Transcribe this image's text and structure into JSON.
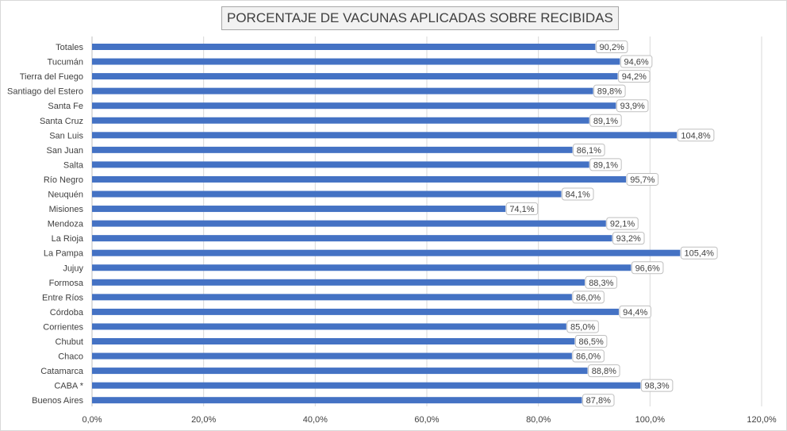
{
  "chart_data": {
    "type": "bar",
    "orientation": "horizontal",
    "title": "PORCENTAJE DE VACUNAS APLICADAS SOBRE RECIBIDAS",
    "xlabel": "",
    "ylabel": "",
    "xlim": [
      0,
      120
    ],
    "xticks": [
      0,
      20,
      40,
      60,
      80,
      100,
      120
    ],
    "xtick_labels": [
      "0,0%",
      "20,0%",
      "40,0%",
      "60,0%",
      "80,0%",
      "100,0%",
      "120,0%"
    ],
    "grid": true,
    "legend": "none",
    "bar_color": "#4472c4",
    "categories": [
      "Totales",
      "Tucumán",
      "Tierra del Fuego",
      "Santiago del Estero",
      "Santa Fe",
      "Santa Cruz",
      "San Luis",
      "San Juan",
      "Salta",
      "Río Negro",
      "Neuquén",
      "Misiones",
      "Mendoza",
      "La Rioja",
      "La Pampa",
      "Jujuy",
      "Formosa",
      "Entre Ríos",
      "Córdoba",
      "Corrientes",
      "Chubut",
      "Chaco",
      "Catamarca",
      "CABA *",
      "Buenos Aires"
    ],
    "values": [
      90.2,
      94.6,
      94.2,
      89.8,
      93.9,
      89.1,
      104.8,
      86.1,
      89.1,
      95.7,
      84.1,
      74.1,
      92.1,
      93.2,
      105.4,
      96.6,
      88.3,
      86.0,
      94.4,
      85.0,
      86.5,
      86.0,
      88.8,
      98.3,
      87.8
    ],
    "value_labels": [
      "90,2%",
      "94,6%",
      "94,2%",
      "89,8%",
      "93,9%",
      "89,1%",
      "104,8%",
      "86,1%",
      "89,1%",
      "95,7%",
      "84,1%",
      "74,1%",
      "92,1%",
      "93,2%",
      "105,4%",
      "96,6%",
      "88,3%",
      "86,0%",
      "94,4%",
      "85,0%",
      "86,5%",
      "86,0%",
      "88,8%",
      "98,3%",
      "87,8%"
    ]
  }
}
